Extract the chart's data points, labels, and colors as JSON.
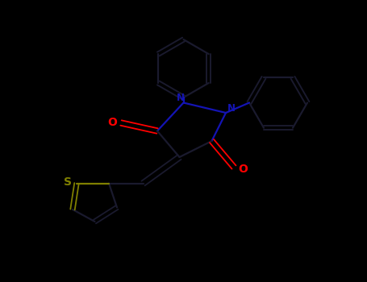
{
  "background_color": "#000000",
  "bond_color": "#1a1a2e",
  "nitrogen_color": "#1414b4",
  "oxygen_color": "#ff0000",
  "sulfur_color": "#808000",
  "figsize": [
    4.55,
    3.5
  ],
  "dpi": 100,
  "xlim": [
    0,
    9
  ],
  "ylim": [
    0,
    7
  ]
}
